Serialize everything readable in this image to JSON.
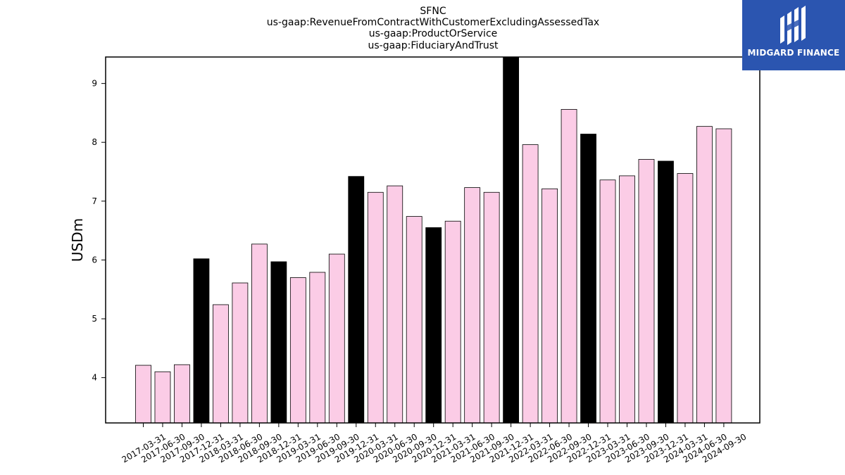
{
  "chart_data": {
    "type": "bar",
    "title_lines": [
      "SFNC",
      "us-gaap:RevenueFromContractWithCustomerExcludingAssessedTax",
      "us-gaap:ProductOrService",
      "us-gaap:FiduciaryAndTrust"
    ],
    "xlabel": "",
    "ylabel": "USDm",
    "ylim": [
      3.23,
      9.45
    ],
    "yticks": [
      4,
      5,
      6,
      7,
      8,
      9
    ],
    "grid": false,
    "categories": [
      "2017-03-31",
      "2017-06-30",
      "2017-09-30",
      "2017-12-31",
      "2018-03-31",
      "2018-06-30",
      "2018-09-30",
      "2018-12-31",
      "2019-03-31",
      "2019-06-30",
      "2019-09-30",
      "2019-12-31",
      "2020-03-31",
      "2020-06-30",
      "2020-09-30",
      "2020-12-31",
      "2021-03-31",
      "2021-06-30",
      "2021-09-30",
      "2021-12-31",
      "2022-03-31",
      "2022-06-30",
      "2022-09-30",
      "2022-12-31",
      "2023-03-31",
      "2023-06-30",
      "2023-09-30",
      "2023-12-31",
      "2024-03-31",
      "2024-06-30",
      "2024-09-30"
    ],
    "values": [
      4.21,
      4.1,
      4.22,
      6.02,
      5.24,
      5.61,
      6.27,
      5.97,
      5.7,
      5.79,
      6.1,
      7.42,
      7.15,
      7.26,
      6.74,
      6.55,
      6.66,
      7.23,
      7.15,
      9.45,
      7.96,
      7.21,
      8.56,
      8.14,
      7.36,
      7.43,
      7.71,
      7.68,
      7.47,
      8.27,
      8.23
    ],
    "colors": {
      "quarter": "#fbcce6",
      "year_end": "#000000",
      "edge": "#000000"
    }
  },
  "logo": {
    "text": "MIDGARD FINANCE",
    "background": "#2b55b0",
    "icon": "midgard-logo-icon"
  }
}
